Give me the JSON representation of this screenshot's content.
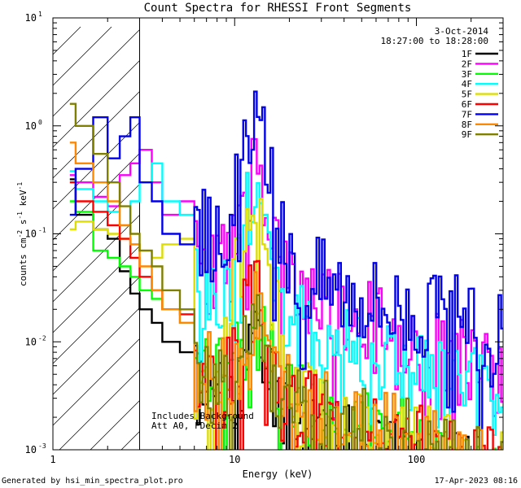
{
  "chart_data": {
    "type": "line",
    "title": "Count Spectra for RHESSI Front Segments",
    "xlabel": "Energy (keV)",
    "ylabel": "counts cm-2 s-1 keV-1",
    "xscale": "log",
    "yscale": "log",
    "xlim": [
      1,
      300
    ],
    "ylim": [
      0.001,
      10
    ],
    "x_ticks": [
      {
        "value": 1,
        "label": "1"
      },
      {
        "value": 10,
        "label": "10"
      },
      {
        "value": 100,
        "label": "100"
      }
    ],
    "y_ticks": [
      {
        "value": 0.001,
        "base": "10",
        "exp": "-3"
      },
      {
        "value": 0.01,
        "base": "10",
        "exp": "-2"
      },
      {
        "value": 0.1,
        "base": "10",
        "exp": "-1"
      },
      {
        "value": 1,
        "base": "10",
        "exp": "0"
      },
      {
        "value": 10,
        "base": "10",
        "exp": "1"
      }
    ],
    "date": "3-Oct-2014",
    "time_range": "18:27:00 to 18:28:00",
    "annotations": [
      "Includes Background",
      "Att A0, FDecim 2"
    ],
    "shaded_region": {
      "x_start": 1,
      "x_end": 3
    },
    "series": [
      {
        "name": "1F",
        "color": "#000000",
        "base": 0.003,
        "peak": 0.006,
        "seed": 11,
        "points": [
          [
            1.333,
            0.32
          ],
          [
            1.667,
            0.15
          ],
          [
            2.0,
            0.11
          ],
          [
            2.333,
            0.09
          ],
          [
            2.667,
            0.045
          ],
          [
            3.0,
            0.028
          ],
          [
            3.5,
            0.02
          ],
          [
            4.0,
            0.015
          ],
          [
            5.0,
            0.01
          ],
          [
            6.0,
            0.008
          ]
        ]
      },
      {
        "name": "2F",
        "color": "#ff00ff",
        "base": 0.04,
        "peak": 0.3,
        "seed": 23,
        "points": [
          [
            1.333,
            0.35
          ],
          [
            1.667,
            0.3
          ],
          [
            2.0,
            0.22
          ],
          [
            2.333,
            0.18
          ],
          [
            2.667,
            0.35
          ],
          [
            3.0,
            0.45
          ],
          [
            3.5,
            0.6
          ],
          [
            4.0,
            0.3
          ],
          [
            5.0,
            0.15
          ],
          [
            6.0,
            0.2
          ]
        ]
      },
      {
        "name": "3F",
        "color": "#00ff00",
        "base": 0.004,
        "peak": 0.01,
        "seed": 37,
        "points": [
          [
            1.333,
            0.2
          ],
          [
            1.667,
            0.16
          ],
          [
            2.0,
            0.07
          ],
          [
            2.333,
            0.06
          ],
          [
            2.667,
            0.05
          ],
          [
            3.0,
            0.04
          ],
          [
            3.5,
            0.03
          ],
          [
            4.0,
            0.025
          ],
          [
            5.0,
            0.02
          ],
          [
            6.0,
            0.015
          ]
        ]
      },
      {
        "name": "4F",
        "color": "#00ffff",
        "base": 0.02,
        "peak": 0.2,
        "seed": 41,
        "points": [
          [
            1.333,
            0.38
          ],
          [
            1.667,
            0.26
          ],
          [
            2.0,
            0.2
          ],
          [
            2.333,
            0.16
          ],
          [
            2.667,
            0.12
          ],
          [
            3.0,
            0.2
          ],
          [
            3.5,
            0.3
          ],
          [
            4.0,
            0.45
          ],
          [
            5.0,
            0.2
          ],
          [
            6.0,
            0.15
          ]
        ]
      },
      {
        "name": "5F",
        "color": "#dddd00",
        "base": 0.004,
        "peak": 0.15,
        "seed": 53,
        "points": [
          [
            1.333,
            0.11
          ],
          [
            1.667,
            0.13
          ],
          [
            2.0,
            0.11
          ],
          [
            2.333,
            0.1
          ],
          [
            2.667,
            0.09
          ],
          [
            3.0,
            0.08
          ],
          [
            3.5,
            0.07
          ],
          [
            4.0,
            0.06
          ],
          [
            5.0,
            0.08
          ],
          [
            6.0,
            0.09
          ]
        ]
      },
      {
        "name": "6F",
        "color": "#ff0000",
        "base": 0.004,
        "peak": 0.02,
        "seed": 67,
        "points": [
          [
            1.333,
            0.3
          ],
          [
            1.667,
            0.2
          ],
          [
            2.0,
            0.16
          ],
          [
            2.333,
            0.12
          ],
          [
            2.667,
            0.09
          ],
          [
            3.0,
            0.06
          ],
          [
            3.5,
            0.04
          ],
          [
            4.0,
            0.03
          ],
          [
            5.0,
            0.02
          ],
          [
            6.0,
            0.018
          ]
        ]
      },
      {
        "name": "7F",
        "color": "#0000ee",
        "base": 0.08,
        "peak": 0.8,
        "seed": 79,
        "points": [
          [
            1.333,
            0.15
          ],
          [
            1.667,
            0.4
          ],
          [
            2.0,
            1.2
          ],
          [
            2.333,
            0.5
          ],
          [
            2.667,
            0.8
          ],
          [
            3.0,
            1.2
          ],
          [
            3.5,
            0.3
          ],
          [
            4.0,
            0.2
          ],
          [
            5.0,
            0.1
          ],
          [
            6.0,
            0.08
          ]
        ]
      },
      {
        "name": "8F",
        "color": "#ff8800",
        "base": 0.004,
        "peak": 0.015,
        "seed": 83,
        "points": [
          [
            1.333,
            0.7
          ],
          [
            1.667,
            0.45
          ],
          [
            2.0,
            0.3
          ],
          [
            2.333,
            0.2
          ],
          [
            2.667,
            0.12
          ],
          [
            3.0,
            0.08
          ],
          [
            3.5,
            0.05
          ],
          [
            4.0,
            0.03
          ],
          [
            5.0,
            0.02
          ],
          [
            6.0,
            0.015
          ]
        ]
      },
      {
        "name": "9F",
        "color": "#808000",
        "base": 0.004,
        "peak": 0.012,
        "seed": 97,
        "points": [
          [
            1.333,
            1.6
          ],
          [
            1.667,
            1.0
          ],
          [
            2.0,
            0.55
          ],
          [
            2.333,
            0.3
          ],
          [
            2.667,
            0.18
          ],
          [
            3.0,
            0.1
          ],
          [
            3.5,
            0.07
          ],
          [
            4.0,
            0.05
          ],
          [
            5.0,
            0.03
          ],
          [
            6.0,
            0.02
          ]
        ]
      }
    ]
  },
  "footer": {
    "generated_by": "Generated by hsi_min_spectra_plot.pro",
    "timestamp": "17-Apr-2023 08:16"
  }
}
